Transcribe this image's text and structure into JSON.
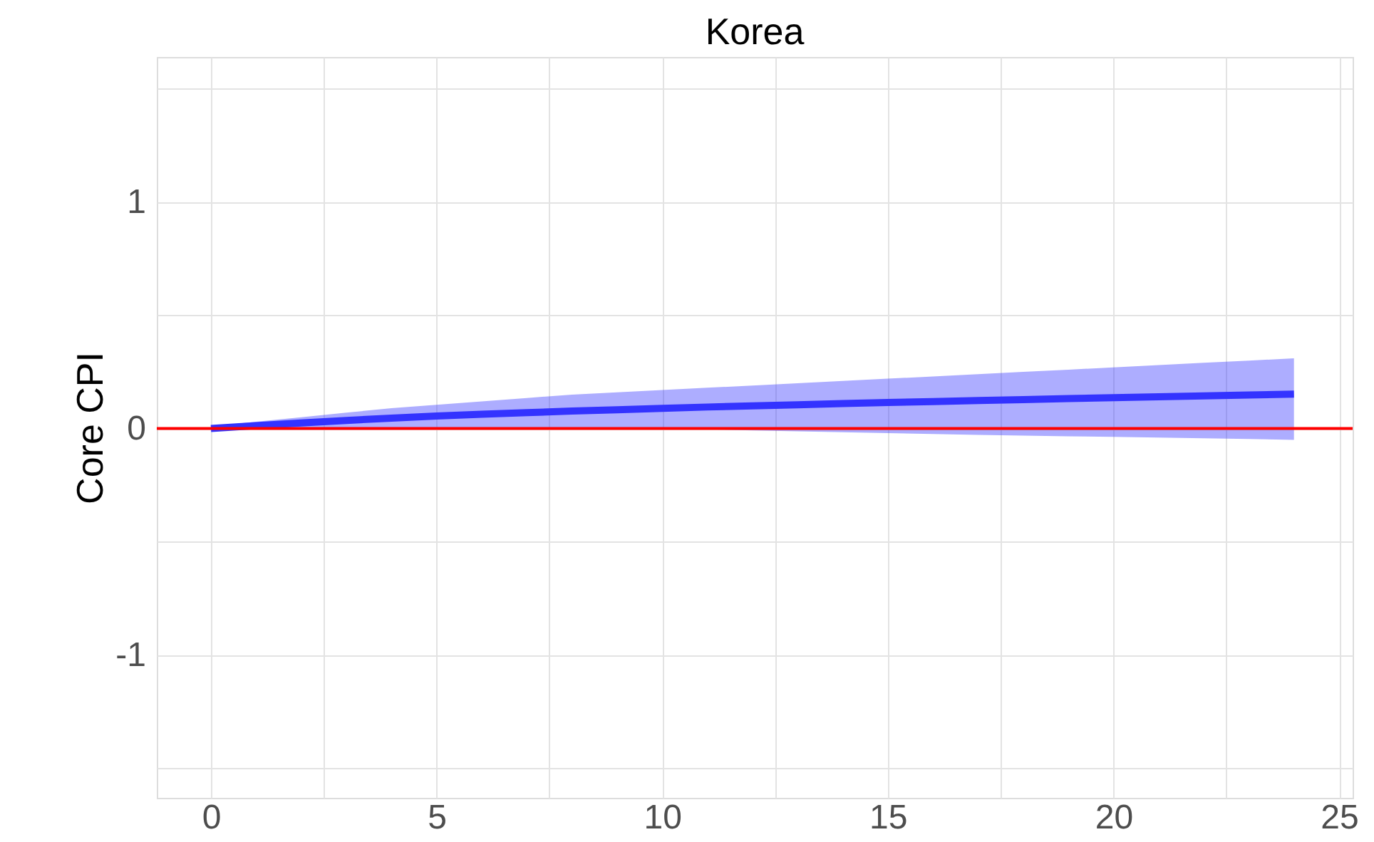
{
  "chart_data": {
    "type": "line",
    "title": "Korea",
    "ylabel": "Core CPI",
    "x": [
      0,
      1,
      2,
      3,
      4,
      5,
      6,
      7,
      8,
      9,
      10,
      11,
      12,
      13,
      14,
      15,
      16,
      17,
      18,
      19,
      20,
      21,
      22,
      23,
      24
    ],
    "series": [
      {
        "color": "#3333ff",
        "values": [
          0,
          0.013,
          0.025,
          0.036,
          0.046,
          0.055,
          0.063,
          0.07,
          0.077,
          0.083,
          0.089,
          0.095,
          0.1,
          0.105,
          0.11,
          0.115,
          0.119,
          0.124,
          0.128,
          0.132,
          0.136,
          0.14,
          0.144,
          0.148,
          0.152
        ],
        "lower": [
          0,
          0,
          0,
          0,
          0,
          0,
          0,
          0,
          0,
          0,
          0,
          -0.004,
          -0.008,
          -0.012,
          -0.016,
          -0.02,
          -0.024,
          -0.028,
          -0.031,
          -0.034,
          -0.037,
          -0.04,
          -0.043,
          -0.046,
          -0.05
        ],
        "upper": [
          0.01,
          0.03,
          0.05,
          0.07,
          0.09,
          0.105,
          0.12,
          0.135,
          0.15,
          0.16,
          0.17,
          0.18,
          0.19,
          0.2,
          0.21,
          0.22,
          0.23,
          0.24,
          0.25,
          0.26,
          0.27,
          0.28,
          0.29,
          0.3,
          0.31
        ]
      }
    ],
    "xlim": [
      -1.2,
      25.3
    ],
    "ylim": [
      -1.63,
      1.64
    ],
    "xticks": [
      0,
      {
        "value": 2.5,
        "label": null
      },
      5,
      {
        "value": 7.5,
        "label": null
      },
      10,
      {
        "value": 12.5,
        "label": null
      },
      15,
      {
        "value": 17.5,
        "label": null
      },
      20,
      {
        "value": 22.5,
        "label": null
      },
      25
    ],
    "yticks": [
      {
        "value": -1.5,
        "label": null
      },
      -1,
      {
        "value": -0.5,
        "label": null
      },
      0,
      {
        "value": 0.5,
        "label": null
      },
      1,
      {
        "value": 1.5,
        "label": null
      }
    ],
    "ref_lines": [
      {
        "axis": "y",
        "value": 0,
        "color": "#ff0000"
      }
    ],
    "grid": true,
    "marker": "none",
    "line_style": "solid"
  }
}
